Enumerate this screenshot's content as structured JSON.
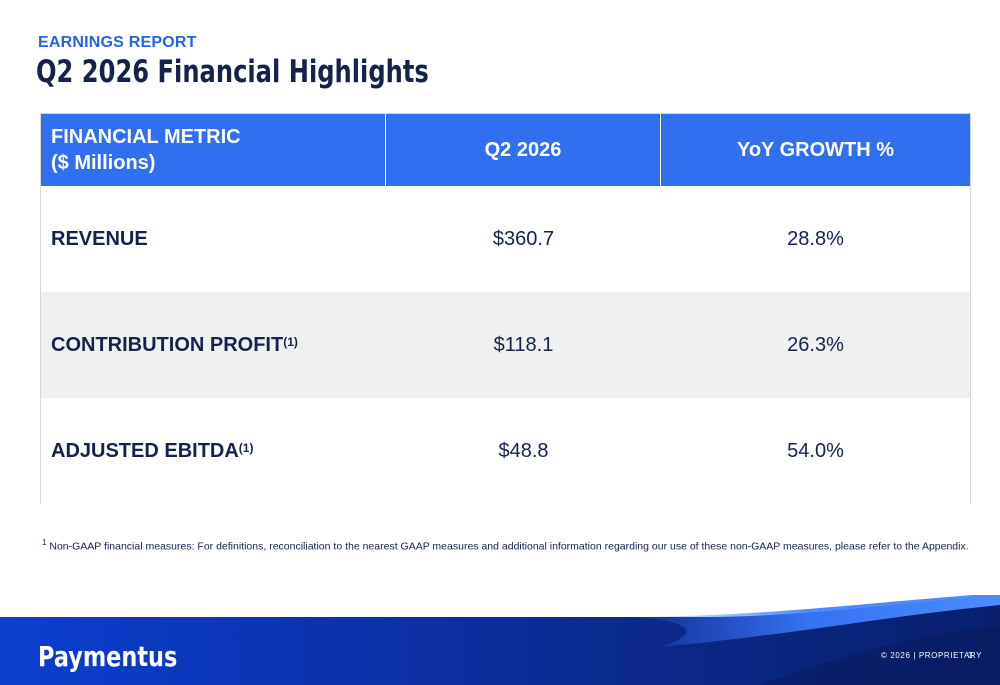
{
  "header": {
    "eyebrow": "EARNINGS REPORT",
    "title": "Q2 2026 Financial Highlights"
  },
  "table": {
    "columns": {
      "metric_line1": "FINANCIAL METRIC",
      "metric_line2": "($ Millions)",
      "period": "Q2 2026",
      "growth": "YoY GROWTH %"
    },
    "rows": [
      {
        "metric": "REVENUE",
        "marker": "",
        "value": "$360.7",
        "growth": "28.8%"
      },
      {
        "metric": "CONTRIBUTION PROFIT",
        "marker": "(1)",
        "value": "$118.1",
        "growth": "26.3%"
      },
      {
        "metric": "ADJUSTED EBITDA",
        "marker": "(1)",
        "value": "$48.8",
        "growth": "54.0%"
      }
    ]
  },
  "footnote": {
    "marker": "1",
    "text": "Non-GAAP financial measures: For definitions, reconciliation to the nearest GAAP measures and additional information regarding our use of these non-GAAP measures, please refer to the Appendix."
  },
  "footer": {
    "logo": "Paymentus",
    "copyright": "© 2026 | PROPRIETARY",
    "page_number": "3"
  },
  "colors": {
    "accent_blue": "#2f6ff0",
    "navy": "#14234b",
    "footer_dark": "#0b2a8f"
  }
}
